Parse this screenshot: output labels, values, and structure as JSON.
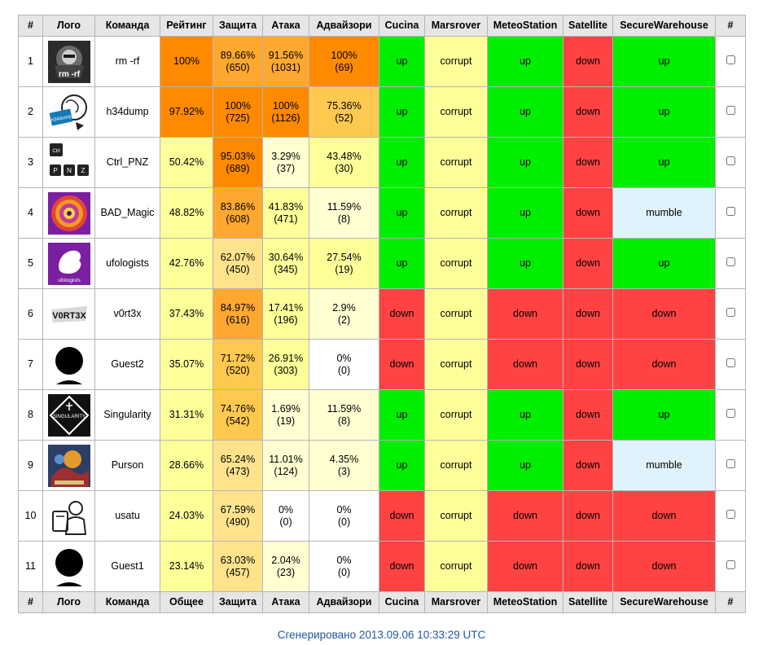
{
  "header": [
    "#",
    "Лого",
    "Команда",
    "Рейтинг",
    "Защита",
    "Атака",
    "Адвайзори",
    "Cucina",
    "Marsrover",
    "MeteoStation",
    "Satellite",
    "SecureWarehouse",
    "#"
  ],
  "footer_header": [
    "#",
    "Лого",
    "Команда",
    "Общее",
    "Защита",
    "Атака",
    "Адвайзори",
    "Cucina",
    "Marsrover",
    "MeteoStation",
    "Satellite",
    "SecureWarehouse",
    "#"
  ],
  "colors": {
    "up": "#00ee00",
    "down": "#ff4343",
    "corrupt": "#ffff99",
    "mumble": "#e0f2fb",
    "score_scale": [
      "#ffffff",
      "#ffffd2",
      "#ffff99",
      "#ffe38c",
      "#ffc84f",
      "#ffa830",
      "#ff8a00"
    ]
  },
  "teams": [
    {
      "rank": "1",
      "logo": "rm-rf-logo",
      "name": "rm -rf",
      "rating": "100%",
      "defense_pct": "89.66%",
      "defense_pts": "(650)",
      "attack_pct": "91.56%",
      "attack_pts": "(1031)",
      "adv_pct": "100%",
      "adv_pts": "(69)",
      "services": [
        "up",
        "corrupt",
        "up",
        "down",
        "up"
      ]
    },
    {
      "rank": "2",
      "logo": "h34dump-logo",
      "name": "h34dump",
      "rating": "97.92%",
      "defense_pct": "100%",
      "defense_pts": "(725)",
      "attack_pct": "100%",
      "attack_pts": "(1126)",
      "adv_pct": "75.36%",
      "adv_pts": "(52)",
      "services": [
        "up",
        "corrupt",
        "up",
        "down",
        "up"
      ]
    },
    {
      "rank": "3",
      "logo": "ctrl-pnz-logo",
      "name": "Ctrl_PNZ",
      "rating": "50.42%",
      "defense_pct": "95.03%",
      "defense_pts": "(689)",
      "attack_pct": "3.29%",
      "attack_pts": "(37)",
      "adv_pct": "43.48%",
      "adv_pts": "(30)",
      "services": [
        "up",
        "corrupt",
        "up",
        "down",
        "up"
      ]
    },
    {
      "rank": "4",
      "logo": "bad-magic-logo",
      "name": "BAD_Magic",
      "rating": "48.82%",
      "defense_pct": "83.86%",
      "defense_pts": "(608)",
      "attack_pct": "41.83%",
      "attack_pts": "(471)",
      "adv_pct": "11.59%",
      "adv_pts": "(8)",
      "services": [
        "up",
        "corrupt",
        "up",
        "down",
        "mumble"
      ]
    },
    {
      "rank": "5",
      "logo": "ufologists-logo",
      "name": "ufologists",
      "rating": "42.76%",
      "defense_pct": "62.07%",
      "defense_pts": "(450)",
      "attack_pct": "30.64%",
      "attack_pts": "(345)",
      "adv_pct": "27.54%",
      "adv_pts": "(19)",
      "services": [
        "up",
        "corrupt",
        "up",
        "down",
        "up"
      ]
    },
    {
      "rank": "6",
      "logo": "v0rt3x-logo",
      "name": "v0rt3x",
      "rating": "37.43%",
      "defense_pct": "84.97%",
      "defense_pts": "(616)",
      "attack_pct": "17.41%",
      "attack_pts": "(196)",
      "adv_pct": "2.9%",
      "adv_pts": "(2)",
      "services": [
        "down",
        "corrupt",
        "down",
        "down",
        "down"
      ]
    },
    {
      "rank": "7",
      "logo": "guest-avatar-logo",
      "name": "Guest2",
      "rating": "35.07%",
      "defense_pct": "71.72%",
      "defense_pts": "(520)",
      "attack_pct": "26.91%",
      "attack_pts": "(303)",
      "adv_pct": "0%",
      "adv_pts": "(0)",
      "services": [
        "down",
        "corrupt",
        "down",
        "down",
        "down"
      ]
    },
    {
      "rank": "8",
      "logo": "singularity-logo",
      "name": "Singularity",
      "rating": "31.31%",
      "defense_pct": "74.76%",
      "defense_pts": "(542)",
      "attack_pct": "1.69%",
      "attack_pts": "(19)",
      "adv_pct": "11.59%",
      "adv_pts": "(8)",
      "services": [
        "up",
        "corrupt",
        "up",
        "down",
        "up"
      ]
    },
    {
      "rank": "9",
      "logo": "purson-logo",
      "name": "Purson",
      "rating": "28.66%",
      "defense_pct": "65.24%",
      "defense_pts": "(473)",
      "attack_pct": "11.01%",
      "attack_pts": "(124)",
      "adv_pct": "4.35%",
      "adv_pts": "(3)",
      "services": [
        "up",
        "corrupt",
        "up",
        "down",
        "mumble"
      ]
    },
    {
      "rank": "10",
      "logo": "usatu-logo",
      "name": "usatu",
      "rating": "24.03%",
      "defense_pct": "67.59%",
      "defense_pts": "(490)",
      "attack_pct": "0%",
      "attack_pts": "(0)",
      "adv_pct": "0%",
      "adv_pts": "(0)",
      "services": [
        "down",
        "corrupt",
        "down",
        "down",
        "down"
      ]
    },
    {
      "rank": "11",
      "logo": "guest-avatar-logo",
      "name": "Guest1",
      "rating": "23.14%",
      "defense_pct": "63.03%",
      "defense_pts": "(457)",
      "attack_pct": "2.04%",
      "attack_pts": "(23)",
      "adv_pct": "0%",
      "adv_pts": "(0)",
      "services": [
        "down",
        "corrupt",
        "down",
        "down",
        "down"
      ]
    }
  ],
  "footer": {
    "text": "Сгенерировано 2013.09.06 10:33:29 UTC"
  }
}
